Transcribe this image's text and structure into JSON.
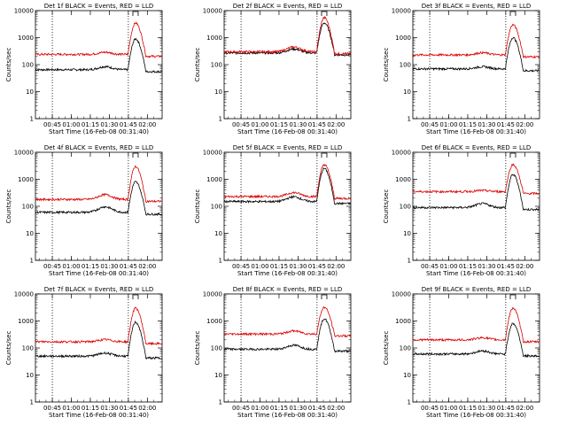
{
  "colors": {
    "events": "#000000",
    "lld": "#dd0000",
    "axis": "#000000"
  },
  "common": {
    "xlabel": "Start Time (16-Feb-08 00:31:40)",
    "ylabel": "Counts/sec",
    "xticks": [
      "00:45",
      "01:00",
      "01:15",
      "01:30",
      "01:45",
      "02:00"
    ],
    "yticks": [
      "1",
      "10",
      "100",
      "1000",
      "10000"
    ]
  },
  "chart_data": [
    {
      "type": "line",
      "title": "Det 1f BLACK = Events, RED = LLD",
      "x_range_minutes": [
        0,
        100
      ],
      "ylim": [
        1,
        10000
      ],
      "y_scale": "log",
      "series": [
        {
          "name": "Events",
          "baseline": 65,
          "peak": 900,
          "bump": 1.3
        },
        {
          "name": "LLD",
          "baseline": 240,
          "peak": 3500,
          "bump": 1.2
        }
      ]
    },
    {
      "type": "line",
      "title": "Det 2f BLACK = Events, RED = LLD",
      "x_range_minutes": [
        0,
        100
      ],
      "ylim": [
        1,
        10000
      ],
      "y_scale": "log",
      "series": [
        {
          "name": "Events",
          "baseline": 270,
          "peak": 3500,
          "bump": 1.4
        },
        {
          "name": "LLD",
          "baseline": 300,
          "peak": 5500,
          "bump": 1.5
        }
      ]
    },
    {
      "type": "line",
      "title": "Det 3f BLACK = Events, RED = LLD",
      "x_range_minutes": [
        0,
        100
      ],
      "ylim": [
        1,
        10000
      ],
      "y_scale": "log",
      "series": [
        {
          "name": "Events",
          "baseline": 70,
          "peak": 1000,
          "bump": 1.2
        },
        {
          "name": "LLD",
          "baseline": 230,
          "peak": 3000,
          "bump": 1.2
        }
      ]
    },
    {
      "type": "line",
      "title": "Det 4f BLACK = Events, RED = LLD",
      "x_range_minutes": [
        0,
        100
      ],
      "ylim": [
        1,
        10000
      ],
      "y_scale": "log",
      "series": [
        {
          "name": "Events",
          "baseline": 60,
          "peak": 800,
          "bump": 1.6
        },
        {
          "name": "LLD",
          "baseline": 180,
          "peak": 3000,
          "bump": 1.5
        }
      ]
    },
    {
      "type": "line",
      "title": "Det 5f BLACK = Events, RED = LLD",
      "x_range_minutes": [
        0,
        100
      ],
      "ylim": [
        1,
        10000
      ],
      "y_scale": "log",
      "series": [
        {
          "name": "Events",
          "baseline": 150,
          "peak": 2500,
          "bump": 1.5
        },
        {
          "name": "LLD",
          "baseline": 230,
          "peak": 3500,
          "bump": 1.4
        }
      ]
    },
    {
      "type": "line",
      "title": "Det 6f BLACK = Events, RED = LLD",
      "x_range_minutes": [
        0,
        100
      ],
      "ylim": [
        1,
        10000
      ],
      "y_scale": "log",
      "series": [
        {
          "name": "Events",
          "baseline": 90,
          "peak": 1500,
          "bump": 1.4
        },
        {
          "name": "LLD",
          "baseline": 350,
          "peak": 3500,
          "bump": 1.1
        }
      ]
    },
    {
      "type": "line",
      "title": "Det 7f BLACK = Events, RED = LLD",
      "x_range_minutes": [
        0,
        100
      ],
      "ylim": [
        1,
        10000
      ],
      "y_scale": "log",
      "series": [
        {
          "name": "Events",
          "baseline": 50,
          "peak": 900,
          "bump": 1.3
        },
        {
          "name": "LLD",
          "baseline": 170,
          "peak": 3000,
          "bump": 1.2
        }
      ]
    },
    {
      "type": "line",
      "title": "Det 8f BLACK = Events, RED = LLD",
      "x_range_minutes": [
        0,
        100
      ],
      "ylim": [
        1,
        10000
      ],
      "y_scale": "log",
      "series": [
        {
          "name": "Events",
          "baseline": 90,
          "peak": 1200,
          "bump": 1.4
        },
        {
          "name": "LLD",
          "baseline": 330,
          "peak": 3200,
          "bump": 1.3
        }
      ]
    },
    {
      "type": "line",
      "title": "Det 9f BLACK = Events, RED = LLD",
      "x_range_minutes": [
        0,
        100
      ],
      "ylim": [
        1,
        10000
      ],
      "y_scale": "log",
      "series": [
        {
          "name": "Events",
          "baseline": 60,
          "peak": 800,
          "bump": 1.3
        },
        {
          "name": "LLD",
          "baseline": 200,
          "peak": 3000,
          "bump": 1.2
        }
      ]
    }
  ]
}
